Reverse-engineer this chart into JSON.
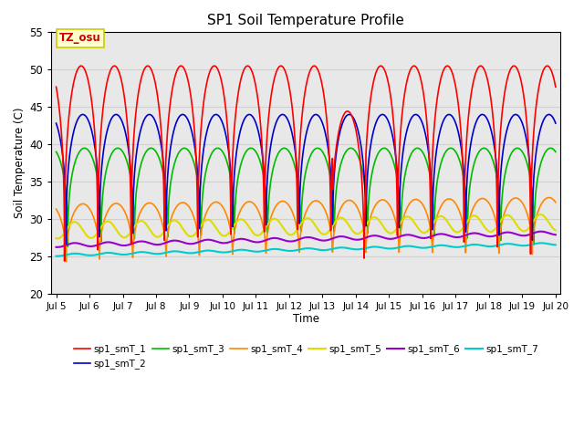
{
  "title": "SP1 Soil Temperature Profile",
  "xlabel": "Time",
  "ylabel": "Soil Temperature (C)",
  "ylim": [
    20,
    55
  ],
  "xlim_days": [
    4.85,
    20.15
  ],
  "grid_color": "#d0d0d0",
  "bg_color": "#e8e8e8",
  "annotation_text": "TZ_osu",
  "annotation_bg": "#ffffcc",
  "annotation_edge": "#cccc00",
  "series_colors": {
    "sp1_smT_1": "#ff0000",
    "sp1_smT_2": "#0000cc",
    "sp1_smT_3": "#00bb00",
    "sp1_smT_4": "#ff8800",
    "sp1_smT_5": "#dddd00",
    "sp1_smT_6": "#9900cc",
    "sp1_smT_7": "#00cccc"
  },
  "tick_labels": [
    "Jul 5",
    "Jul 6",
    "Jul 7",
    "Jul 8",
    "Jul 9",
    "Jul 10",
    "Jul 11",
    "Jul 12",
    "Jul 13",
    "Jul 14",
    "Jul 15",
    "Jul 16",
    "Jul 17",
    "Jul 18",
    "Jul 19",
    "Jul 20"
  ],
  "tick_positions": [
    5,
    6,
    7,
    8,
    9,
    10,
    11,
    12,
    13,
    14,
    15,
    16,
    17,
    18,
    19,
    20
  ],
  "yticks": [
    20,
    25,
    30,
    35,
    40,
    45,
    50,
    55
  ]
}
